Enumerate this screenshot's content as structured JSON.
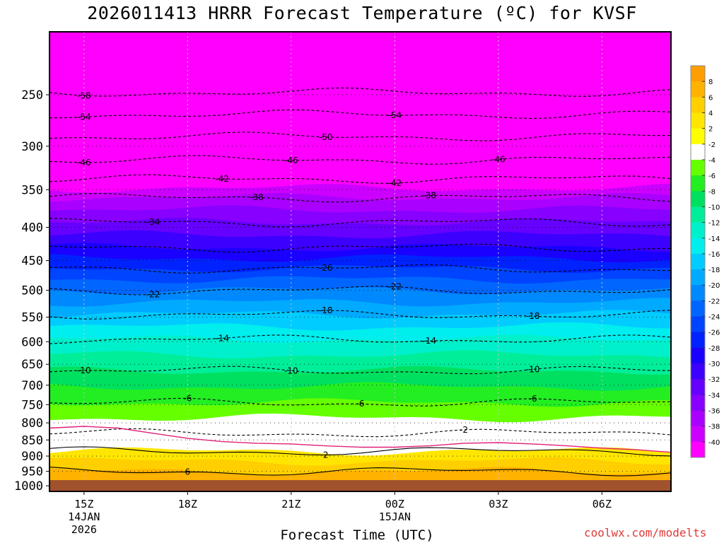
{
  "chart_data": {
    "type": "heatmap",
    "title": "2026011413 HRRR Forecast Temperature (ºC) for KVSF",
    "xlabel": "Forecast Time (UTC)",
    "ylabel": "",
    "x_ticks": [
      {
        "label": "15Z",
        "sub": [
          "14JAN",
          "2026"
        ],
        "hour": 1
      },
      {
        "label": "18Z",
        "sub": [],
        "hour": 4
      },
      {
        "label": "21Z",
        "sub": [],
        "hour": 7
      },
      {
        "label": "00Z",
        "sub": [
          "15JAN"
        ],
        "hour": 10
      },
      {
        "label": "03Z",
        "sub": [],
        "hour": 13
      },
      {
        "label": "06Z",
        "sub": [],
        "hour": 16
      }
    ],
    "x_range_hours": [
      0,
      18
    ],
    "y_ticks": [
      250,
      300,
      350,
      400,
      450,
      500,
      550,
      600,
      650,
      700,
      750,
      800,
      850,
      900,
      950,
      1000
    ],
    "y_range_hPa": [
      200,
      1020
    ],
    "y_scale": "log",
    "colorbar": {
      "levels": [
        8,
        6,
        4,
        2,
        -2,
        -4,
        -6,
        -8,
        -10,
        -12,
        -14,
        -16,
        -18,
        -20,
        -22,
        -24,
        -26,
        -28,
        -30,
        -32,
        -34,
        -36,
        -38,
        -40
      ],
      "colors": [
        "#ff9e00",
        "#ffb300",
        "#ffcf00",
        "#ffe600",
        "#ffff00",
        "#ffffff",
        "#66ff00",
        "#22ee22",
        "#00e060",
        "#00ee99",
        "#00f0cc",
        "#00eeee",
        "#00ccff",
        "#00aaff",
        "#0088ff",
        "#0066ff",
        "#0044ff",
        "#0022ff",
        "#1a00ff",
        "#3c00ff",
        "#6600ff",
        "#8800ff",
        "#aa00ff",
        "#cc00ff",
        "#ff00ff"
      ]
    },
    "contours": [
      {
        "value": -58,
        "pressure": 248,
        "label_hours": [
          1
        ]
      },
      {
        "value": -54,
        "pressure": 268,
        "label_hours": [
          1,
          10
        ]
      },
      {
        "value": -50,
        "pressure": 290,
        "label_hours": [
          8
        ]
      },
      {
        "value": -46,
        "pressure": 315,
        "label_hours": [
          1,
          7,
          13
        ]
      },
      {
        "value": -42,
        "pressure": 337,
        "label_hours": [
          5,
          10
        ]
      },
      {
        "value": -38,
        "pressure": 360,
        "label_hours": [
          6,
          11
        ]
      },
      {
        "value": -34,
        "pressure": 393,
        "label_hours": [
          3
        ]
      },
      {
        "value": -30,
        "pressure": 430,
        "label_hours": []
      },
      {
        "value": -26,
        "pressure": 463,
        "label_hours": [
          8
        ]
      },
      {
        "value": -22,
        "pressure": 500,
        "label_hours": [
          3,
          10
        ]
      },
      {
        "value": -18,
        "pressure": 545,
        "label_hours": [
          8,
          14
        ]
      },
      {
        "value": -14,
        "pressure": 595,
        "label_hours": [
          5,
          11
        ]
      },
      {
        "value": -10,
        "pressure": 665,
        "label_hours": [
          1,
          7,
          14
        ]
      },
      {
        "value": -6,
        "pressure": 745,
        "label_hours": [
          4,
          9,
          14
        ]
      },
      {
        "value": -2,
        "pressure": 830,
        "label_hours": [
          12
        ]
      },
      {
        "value": 2,
        "pressure": 885,
        "label_hours": [
          8
        ]
      },
      {
        "value": 6,
        "pressure": 950,
        "label_hours": [
          4
        ]
      }
    ],
    "freezing_line_pressure": [
      815,
      810,
      815,
      830,
      845,
      855,
      860,
      862,
      868,
      872,
      872,
      868,
      860,
      858,
      862,
      868,
      875,
      880,
      888
    ],
    "ground_pressure": 980
  },
  "credit": "coolwx.com/modelts"
}
